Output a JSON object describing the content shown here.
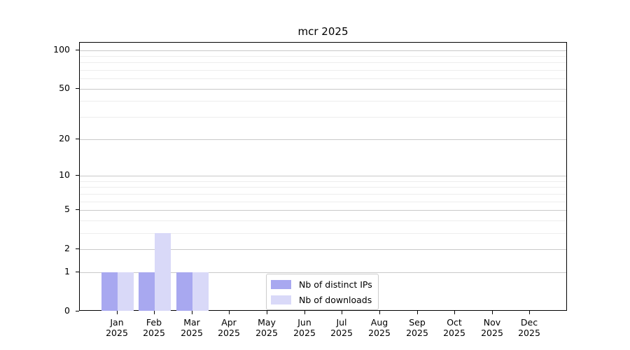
{
  "chart_data": {
    "type": "bar",
    "title": "mcr 2025",
    "categories": [
      "Jan",
      "Feb",
      "Mar",
      "Apr",
      "May",
      "Jun",
      "Jul",
      "Aug",
      "Sep",
      "Oct",
      "Nov",
      "Dec"
    ],
    "x_tick_year": "2025",
    "series": [
      {
        "name": "Nb of distinct IPs",
        "color": "#a8a8f0",
        "values": [
          1,
          1,
          1,
          0,
          0,
          0,
          0,
          0,
          0,
          0,
          0,
          0
        ]
      },
      {
        "name": "Nb of downloads",
        "color": "#d9d9f8",
        "values": [
          1,
          3,
          1,
          0,
          0,
          0,
          0,
          0,
          0,
          0,
          0,
          0
        ]
      }
    ],
    "yscale": "log1p",
    "ylim": [
      0,
      113
    ],
    "y_tick_values": [
      0,
      1,
      2,
      5,
      10,
      20,
      50,
      100
    ],
    "y_minor_gridlines": [
      3,
      4,
      6,
      7,
      8,
      9,
      30,
      40,
      60,
      70,
      80,
      90
    ],
    "grid": true,
    "legend_position": "lower center",
    "colors": {
      "major_grid": "#c9c9c9",
      "minor_grid": "#ededed",
      "spine": "#000000",
      "background": "#ffffff"
    }
  }
}
